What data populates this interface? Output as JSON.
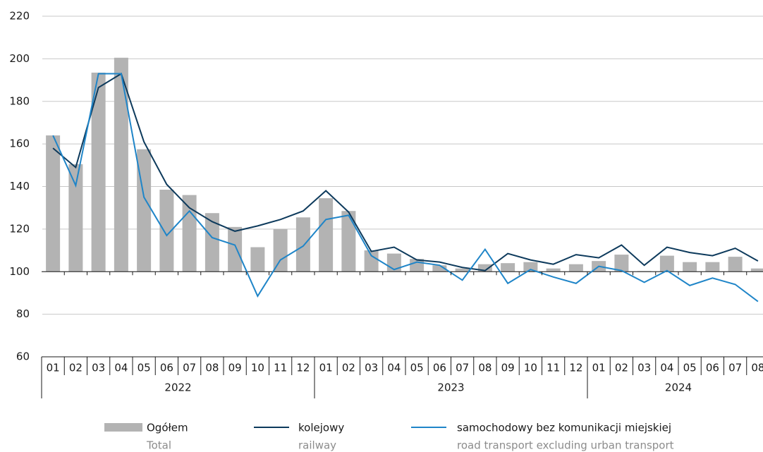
{
  "chart_data": {
    "type": "bar-line",
    "categories": [
      "01",
      "02",
      "03",
      "04",
      "05",
      "06",
      "07",
      "08",
      "09",
      "10",
      "11",
      "12",
      "01",
      "02",
      "03",
      "04",
      "05",
      "06",
      "07",
      "08",
      "09",
      "10",
      "11",
      "12",
      "01",
      "02",
      "03",
      "04",
      "05",
      "06",
      "07",
      "08"
    ],
    "year_labels": [
      "2022",
      "2023",
      "2024"
    ],
    "ylim": [
      60,
      220
    ],
    "yticks": [
      60,
      80,
      100,
      120,
      140,
      160,
      180,
      200,
      220
    ],
    "grid": true,
    "xaxis_at": 100,
    "series": [
      {
        "name": "Ogółem",
        "name_en": "Total",
        "type": "bar",
        "color": "#b3b3b3",
        "values": [
          164,
          150.5,
          193.5,
          200.5,
          157.5,
          138.5,
          136,
          127.5,
          121,
          111.5,
          120,
          125.5,
          134.5,
          128.5,
          110,
          108.5,
          106,
          103,
          101.5,
          103.5,
          104,
          104.5,
          101.5,
          103.5,
          105,
          108,
          100.3,
          107.5,
          104.5,
          104.5,
          107,
          101.5
        ]
      },
      {
        "name": "kolejowy",
        "name_en": "railway",
        "type": "line",
        "color": "#0d3a5c",
        "values": [
          158,
          149,
          186.5,
          193,
          161,
          141,
          130,
          123.5,
          119,
          121.5,
          124.5,
          128.5,
          138,
          128,
          109.5,
          111.5,
          105.5,
          104.5,
          102,
          100.5,
          108.5,
          105.5,
          103.5,
          108,
          106.5,
          112.5,
          103,
          111.5,
          109,
          107.5,
          111,
          105
        ]
      },
      {
        "name": "samochodowy bez komunikacji miejskiej",
        "name_en": "road transport excluding urban transport",
        "type": "line",
        "color": "#1f85c8",
        "values": [
          164,
          140.5,
          193,
          193,
          135,
          117,
          128.5,
          116,
          112.5,
          88.5,
          105.5,
          112,
          124.5,
          126.5,
          107.5,
          101,
          104.5,
          103,
          96,
          110.5,
          94.5,
          101,
          97.5,
          94.5,
          102.5,
          100.5,
          95,
          100.5,
          93.5,
          97,
          94,
          86
        ]
      }
    ]
  }
}
